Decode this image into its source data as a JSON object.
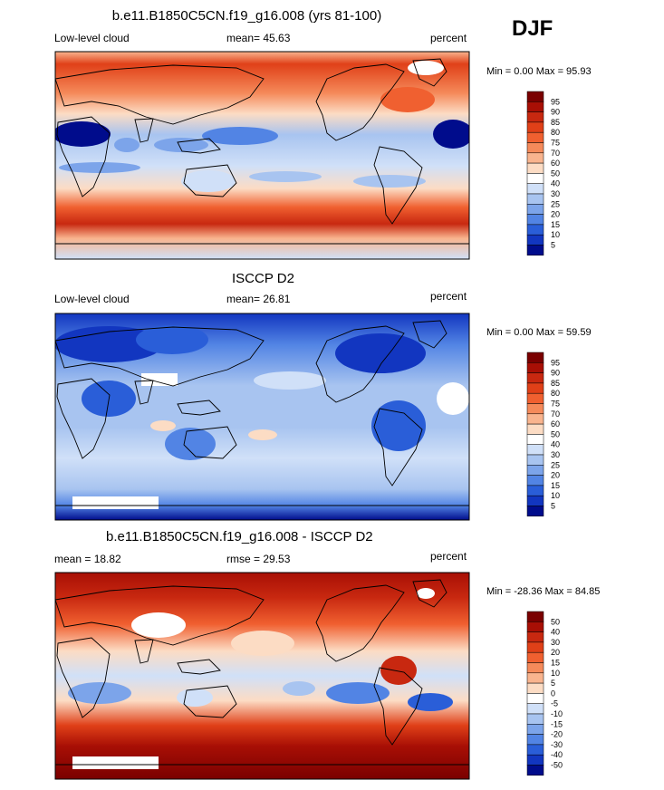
{
  "season": "DJF",
  "panels": [
    {
      "title": "b.e11.B1850C5CN.f19_g16.008 (yrs 81-100)",
      "left_label": "Low-level cloud",
      "center_label": "mean=  45.63",
      "units": "percent",
      "minmax": "Min =   0.00 Max =  95.93",
      "scale": "abs"
    },
    {
      "title": "ISCCP D2",
      "left_label": "Low-level cloud",
      "center_label": "mean=  26.81",
      "units": "percent",
      "minmax": "Min =   0.00 Max =  59.59",
      "scale": "abs"
    },
    {
      "title": "b.e11.B1850C5CN.f19_g16.008 - ISCCP D2",
      "left_label": "mean =  18.82",
      "center_label": "rmse =  29.53",
      "units": "percent",
      "minmax": "Min = -28.36 Max =  84.85",
      "scale": "diff"
    }
  ],
  "colorbars": {
    "abs": {
      "labels": [
        "95",
        "90",
        "85",
        "80",
        "75",
        "70",
        "60",
        "50",
        "40",
        "30",
        "25",
        "20",
        "15",
        "10",
        "5"
      ],
      "colors": [
        "#7a0000",
        "#a80f05",
        "#c82810",
        "#e04018",
        "#f06030",
        "#f58a5a",
        "#f9b48e",
        "#fcdcc4",
        "#ffffff",
        "#d0e0f8",
        "#a8c4f0",
        "#7ca4ea",
        "#5284e4",
        "#2a5ed8",
        "#1236c0",
        "#000c8c"
      ]
    },
    "diff": {
      "labels": [
        "50",
        "40",
        "30",
        "20",
        "15",
        "10",
        "5",
        "0",
        "-5",
        "-10",
        "-15",
        "-20",
        "-30",
        "-40",
        "-50"
      ],
      "colors": [
        "#7a0000",
        "#a80f05",
        "#c82810",
        "#e04018",
        "#f06030",
        "#f58a5a",
        "#f9b48e",
        "#fcdcc4",
        "#ffffff",
        "#d0e0f8",
        "#a8c4f0",
        "#7ca4ea",
        "#5284e4",
        "#2a5ed8",
        "#1236c0",
        "#000c8c"
      ]
    }
  }
}
